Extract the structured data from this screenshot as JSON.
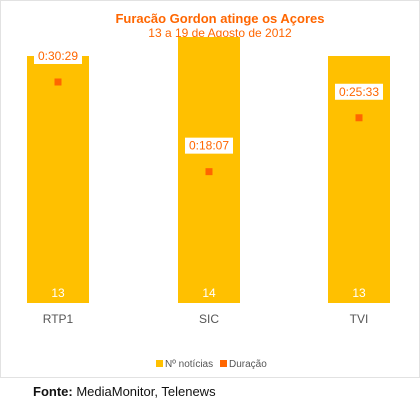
{
  "chart_data": {
    "type": "bar",
    "title": "Furacão Gordon atinge os Açores",
    "subtitle": "13 a 19 de Agosto de 2012",
    "categories": [
      "RTP1",
      "SIC",
      "TVI"
    ],
    "series": [
      {
        "name": "Nº notícias",
        "type": "bar",
        "values": [
          13,
          14,
          13
        ],
        "labels": [
          "13",
          "14",
          "13"
        ]
      },
      {
        "name": "Duração",
        "type": "point",
        "values": [
          "0:30:29",
          "0:18:07",
          "0:25:33"
        ],
        "labels": [
          "0:30:29",
          "0:18:07",
          "0:25:33"
        ]
      }
    ],
    "legend_position": "bottom",
    "grid": false
  },
  "colors": {
    "bar": "#FFC000",
    "point": "#FF6600",
    "title": "#FF6600",
    "axis_text": "#555555",
    "bar_label": "#ffffff"
  },
  "source": {
    "label": "Fonte:",
    "text": "MediaMonitor, Telenews"
  }
}
